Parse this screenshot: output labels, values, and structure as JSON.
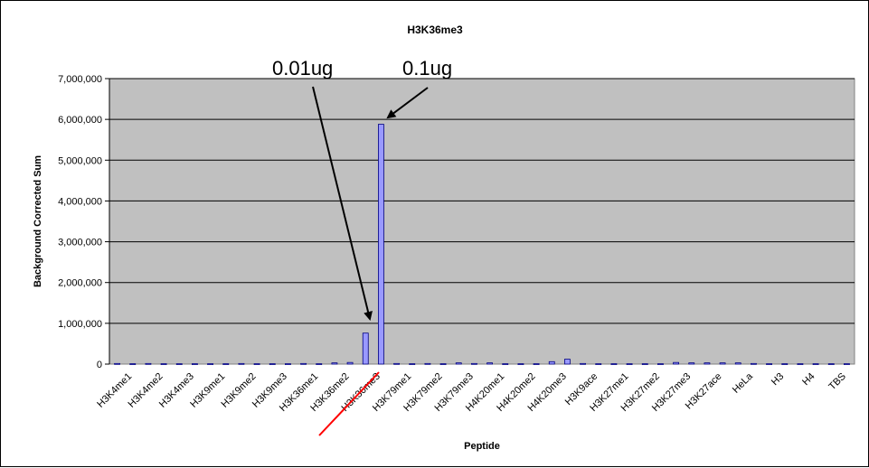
{
  "chart_data": {
    "type": "bar",
    "title": "H3K36me3",
    "xlabel": "Peptide",
    "ylabel": "Background Corrected Sum",
    "ylim": [
      0,
      7000000
    ],
    "yticks": [
      0,
      1000000,
      2000000,
      3000000,
      4000000,
      5000000,
      6000000,
      7000000
    ],
    "ytick_labels": [
      "0",
      "1,000,000",
      "2,000,000",
      "3,000,000",
      "4,000,000",
      "5,000,000",
      "6,000,000",
      "7,000,000"
    ],
    "grid": true,
    "legend": "none",
    "bar_color": "#9999ff",
    "plot_bg": "#c0c0c0",
    "categories": [
      "H3K4me1",
      "H3K4me1",
      "H3K4me2",
      "H3K4me2",
      "H3K4me3",
      "H3K4me3",
      "H3K9me1",
      "H3K9me1",
      "H3K9me2",
      "H3K9me2",
      "H3K9me3",
      "H3K9me3",
      "H3K36me1",
      "H3K36me1",
      "H3K36me2",
      "H3K36me2",
      "H3K36me3",
      "H3K36me3",
      "H3K79me1",
      "H3K79me1",
      "H3K79me2",
      "H3K79me2",
      "H3K79me3",
      "H3K79me3",
      "H4K20me1",
      "H4K20me1",
      "H4K20me2",
      "H4K20me2",
      "H4K20me3",
      "H4K20me3",
      "H3K9ace",
      "H3K9ace",
      "H3K27me1",
      "H3K27me1",
      "H3K27me2",
      "H3K27me2",
      "H3K27me3",
      "H3K27me3",
      "H3K27ace",
      "H3K27ace",
      "HeLa",
      "HeLa",
      "H3",
      "H3",
      "H4",
      "H4",
      "TBS",
      "TBS"
    ],
    "xtick_labels": [
      "H3K4me1",
      "H3K4me2",
      "H3K4me3",
      "H3K9me1",
      "H3K9me2",
      "H3K9me3",
      "H3K36me1",
      "H3K36me2",
      "H3K36me3",
      "H3K79me1",
      "H3K79me2",
      "H3K79me3",
      "H4K20me1",
      "H4K20me2",
      "H4K20me3",
      "H3K9ace",
      "H3K27me1",
      "H3K27me2",
      "H3K27me3",
      "H3K27ace",
      "HeLa",
      "H3",
      "H4",
      "TBS"
    ],
    "values": [
      15000,
      10000,
      15000,
      10000,
      10000,
      10000,
      10000,
      10000,
      15000,
      10000,
      10000,
      10000,
      15000,
      10000,
      30000,
      40000,
      760000,
      5880000,
      15000,
      10000,
      15000,
      10000,
      30000,
      15000,
      30000,
      10000,
      10000,
      10000,
      60000,
      120000,
      15000,
      10000,
      10000,
      10000,
      10000,
      10000,
      40000,
      30000,
      30000,
      30000,
      30000,
      15000,
      10000,
      10000,
      10000,
      10000,
      10000,
      10000
    ],
    "annotations": [
      {
        "text": "0.01ug",
        "target_index": 16
      },
      {
        "text": "0.1ug",
        "target_index": 17
      }
    ],
    "highlight": {
      "label": "H3K36me3",
      "color": "#ff0000"
    }
  }
}
